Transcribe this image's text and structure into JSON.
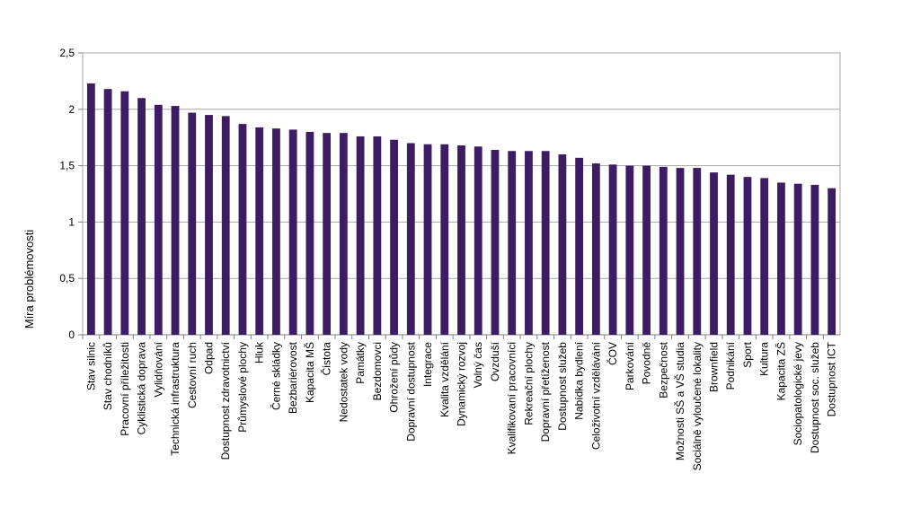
{
  "chart_data": {
    "type": "bar",
    "title": "",
    "xlabel": "",
    "ylabel": "Míra problémovosti",
    "ylim": [
      0,
      2.5
    ],
    "yticks": [
      "0",
      "0,5",
      "1",
      "1,5",
      "2",
      "2,5"
    ],
    "grid": true,
    "bar_color": "#3d1c63",
    "categories": [
      "Stav silnic",
      "Stav chodníků",
      "Pracovní příležitosti",
      "Cyklistická doprava",
      "Vylidňování",
      "Technická infrastruktura",
      "Cestovní ruch",
      "Odpad",
      "Dostupnost zdravotnictví",
      "Průmyslové plochy",
      "Hluk",
      "Černé skládky",
      "Bezbariérovost",
      "Kapacita MŠ",
      "Čistota",
      "Nedostatek vody",
      "Památky",
      "Bezdomovci",
      "Ohrožení půdy",
      "Dopravní dostupnost",
      "Integrace",
      "Kvalita vzdělání",
      "Dynamický rozvoj",
      "Volný čas",
      "Ovzduší",
      "Kvalifikovaní pracovníci",
      "Rekreační plochy",
      "Dopravní přetíženost",
      "Dostupnost služeb",
      "Nabídka bydlení",
      "Celoživotní vzdělávání",
      "ČOV",
      "Parkování",
      "Povodně",
      "Bezpečnost",
      "Možnosti SŠ a VŠ studia",
      "Sociálně vyloučené lokality",
      "Brownfield",
      "Podnikání",
      "Sport",
      "Kultura",
      "Kapacita ZŠ",
      "Sociopatologické jevy",
      "Dostupnost soc. služeb",
      "Dostupnost ICT"
    ],
    "values": [
      2.23,
      2.18,
      2.16,
      2.1,
      2.04,
      2.03,
      1.97,
      1.95,
      1.94,
      1.87,
      1.84,
      1.83,
      1.82,
      1.8,
      1.79,
      1.79,
      1.76,
      1.76,
      1.73,
      1.7,
      1.69,
      1.69,
      1.68,
      1.67,
      1.64,
      1.63,
      1.63,
      1.63,
      1.6,
      1.57,
      1.52,
      1.51,
      1.5,
      1.5,
      1.49,
      1.48,
      1.48,
      1.44,
      1.42,
      1.4,
      1.39,
      1.35,
      1.34,
      1.33,
      1.3
    ]
  }
}
